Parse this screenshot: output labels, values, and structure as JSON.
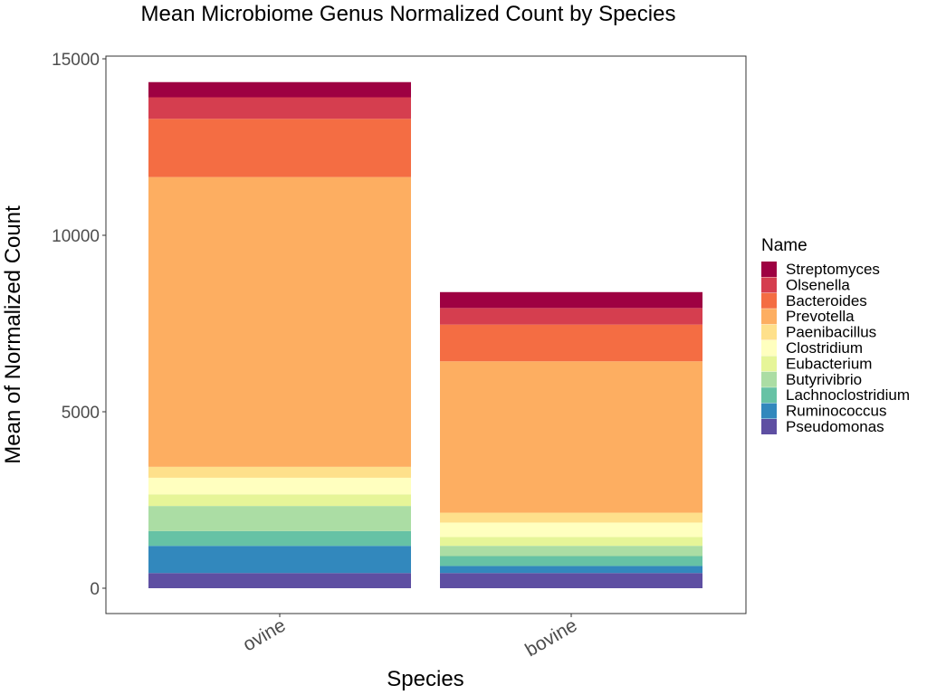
{
  "chart_data": {
    "type": "bar",
    "stacked": true,
    "title": "Mean Microbiome Genus Normalized Count by Species",
    "xlabel": "Species",
    "ylabel": "Mean of Normalized Count",
    "ylim": [
      -700,
      15100
    ],
    "yticks": [
      0,
      5000,
      10000,
      15000
    ],
    "grid": false,
    "legend": {
      "title": "Name",
      "position": "right"
    },
    "categories": [
      "ovine",
      "bovine"
    ],
    "series": [
      {
        "name": "Pseudomonas",
        "color": "#5e4fa2",
        "values": [
          430,
          430
        ]
      },
      {
        "name": "Ruminococcus",
        "color": "#3288bd",
        "values": [
          770,
          200
        ]
      },
      {
        "name": "Lachnoclostridium",
        "color": "#66c2a5",
        "values": [
          420,
          280
        ]
      },
      {
        "name": "Butyrivibrio",
        "color": "#abdda4",
        "values": [
          710,
          290
        ]
      },
      {
        "name": "Eubacterium",
        "color": "#e6f598",
        "values": [
          330,
          250
        ]
      },
      {
        "name": "Clostridium",
        "color": "#ffffbf",
        "values": [
          470,
          410
        ]
      },
      {
        "name": "Paenibacillus",
        "color": "#fee08b",
        "values": [
          310,
          280
        ]
      },
      {
        "name": "Prevotella",
        "color": "#fdae61",
        "values": [
          8210,
          4290
        ]
      },
      {
        "name": "Bacteroides",
        "color": "#f46d43",
        "values": [
          1650,
          1040
        ]
      },
      {
        "name": "Olsenella",
        "color": "#d53e4f",
        "values": [
          610,
          470
        ]
      },
      {
        "name": "Streptomyces",
        "color": "#9e0142",
        "values": [
          430,
          450
        ]
      }
    ]
  }
}
